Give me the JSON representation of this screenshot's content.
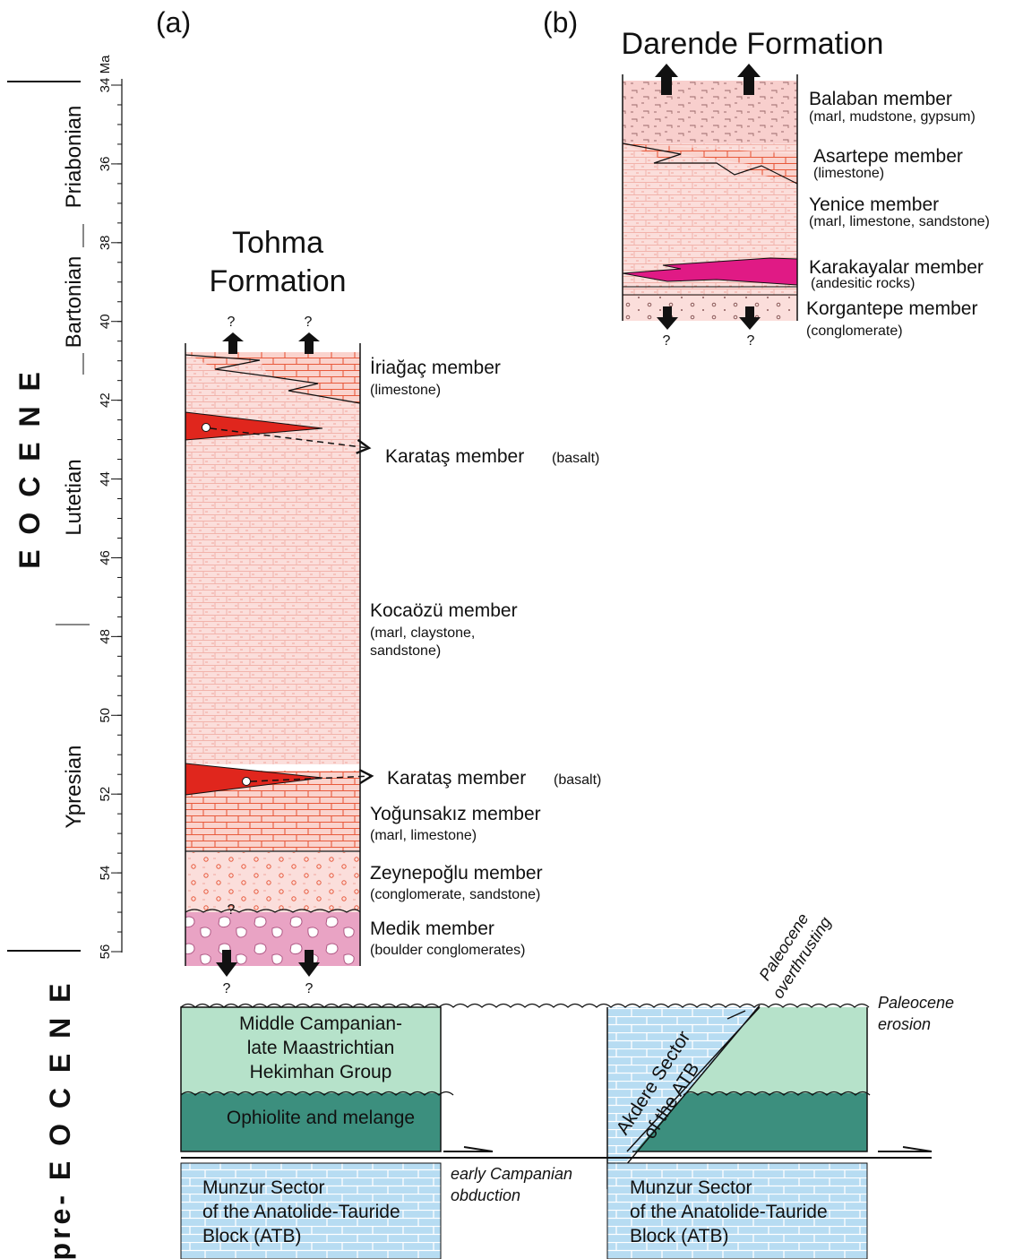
{
  "panels": {
    "a": "(a)",
    "b": "(b)"
  },
  "age_scale": {
    "unit": "Ma",
    "ticks": [
      34,
      36,
      38,
      40,
      42,
      44,
      46,
      48,
      50,
      52,
      54,
      56
    ]
  },
  "epochs": {
    "eocene": "E O C E N E",
    "pre_eocene": "pre- E O C E N E"
  },
  "stages": [
    "Priabonian",
    "Bartonian",
    "Lutetian",
    "Ypresian"
  ],
  "uncertain": "?",
  "tohma": {
    "title": [
      "Tohma",
      "Formation"
    ],
    "members": [
      {
        "name": "İriağaç member",
        "lithology": "(limestone)"
      },
      {
        "name": "Karataş member",
        "lithology": "(basalt)"
      },
      {
        "name": "Kocaözü member",
        "lithology": [
          "(marl, claystone,",
          "sandstone)"
        ]
      },
      {
        "name": "Karataş member",
        "lithology": "(basalt)"
      },
      {
        "name": "Yoğunsakız member",
        "lithology": "(marl, limestone)"
      },
      {
        "name": "Zeynepoğlu member",
        "lithology": "(conglomerate, sandstone)"
      },
      {
        "name": "Medik member",
        "lithology": "(boulder conglomerates)"
      }
    ]
  },
  "darende": {
    "title": "Darende Formation",
    "members": [
      {
        "name": "Balaban member",
        "lithology": "(marl, mudstone, gypsum)"
      },
      {
        "name": "Asartepe member",
        "lithology": "(limestone)"
      },
      {
        "name": "Yenice member",
        "lithology": "(marl, limestone, sandstone)"
      },
      {
        "name": "Karakayalar member",
        "lithology": "(andesitic rocks)"
      },
      {
        "name": "Korgantepe member",
        "lithology": "(conglomerate)"
      }
    ]
  },
  "basement": {
    "hekimhan": [
      "Middle Campanian-",
      "late Maastrichtian",
      "Hekimhan Group"
    ],
    "ophiolite": "Ophiolite and melange",
    "munzur": [
      "Munzur Sector",
      "of the Anatolide-Tauride",
      "Block (ATB)"
    ],
    "akdere": [
      "Akdere Sector",
      "of the ATB"
    ],
    "overthrusting": [
      "Paleocene",
      "overthrusting"
    ],
    "erosion": [
      "Paleocene",
      "erosion"
    ],
    "obduction": [
      "early Campanian",
      "obduction"
    ]
  }
}
